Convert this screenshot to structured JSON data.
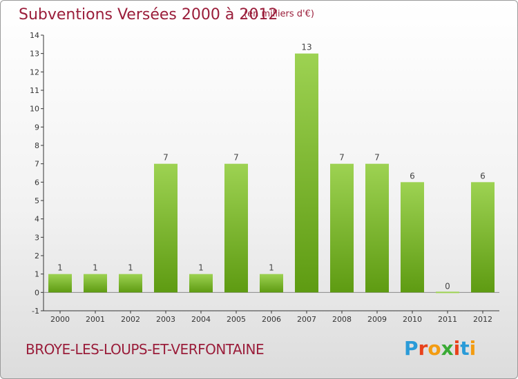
{
  "header": {
    "title": "Subventions Versées 2000 à 2012",
    "unit": "(en milliers d'€)"
  },
  "footer": {
    "place": "BROYE-LES-LOUPS-ET-VERFONTAINE",
    "brand_letters": [
      "P",
      "r",
      "o",
      "x",
      "i",
      "t",
      "i"
    ]
  },
  "colors": {
    "bar_top": "#9dd252",
    "bar_bottom": "#5e9b12",
    "title": "#9a1d3a",
    "brand": [
      "#2a9bd8",
      "#e8421c",
      "#f39c12",
      "#3aaa35",
      "#e8421c",
      "#2a9bd8",
      "#f39c12"
    ]
  },
  "chart_data": {
    "type": "bar",
    "title": "Subventions Versées 2000 à 2012",
    "subtitle": "(en milliers d'€)",
    "xlabel": "",
    "ylabel": "",
    "categories": [
      "2000",
      "2001",
      "2002",
      "2003",
      "2004",
      "2005",
      "2006",
      "2007",
      "2008",
      "2009",
      "2010",
      "2011",
      "2012"
    ],
    "values": [
      1,
      1,
      1,
      7,
      1,
      7,
      1,
      13,
      7,
      7,
      6,
      0,
      6
    ],
    "data_labels": [
      "1",
      "1",
      "1",
      "7",
      "1",
      "7",
      "1",
      "13",
      "7",
      "7",
      "6",
      "0",
      "6"
    ],
    "ylim": [
      -1,
      14
    ],
    "yticks": [
      -1,
      0,
      1,
      2,
      3,
      4,
      5,
      6,
      7,
      8,
      9,
      10,
      11,
      12,
      13,
      14
    ],
    "ytick_labels": [
      "-1",
      "0",
      "1",
      "2",
      "3",
      "4",
      "5",
      "6",
      "7",
      "8",
      "9",
      "10",
      "11",
      "12",
      "13",
      "14"
    ],
    "grid": false
  }
}
